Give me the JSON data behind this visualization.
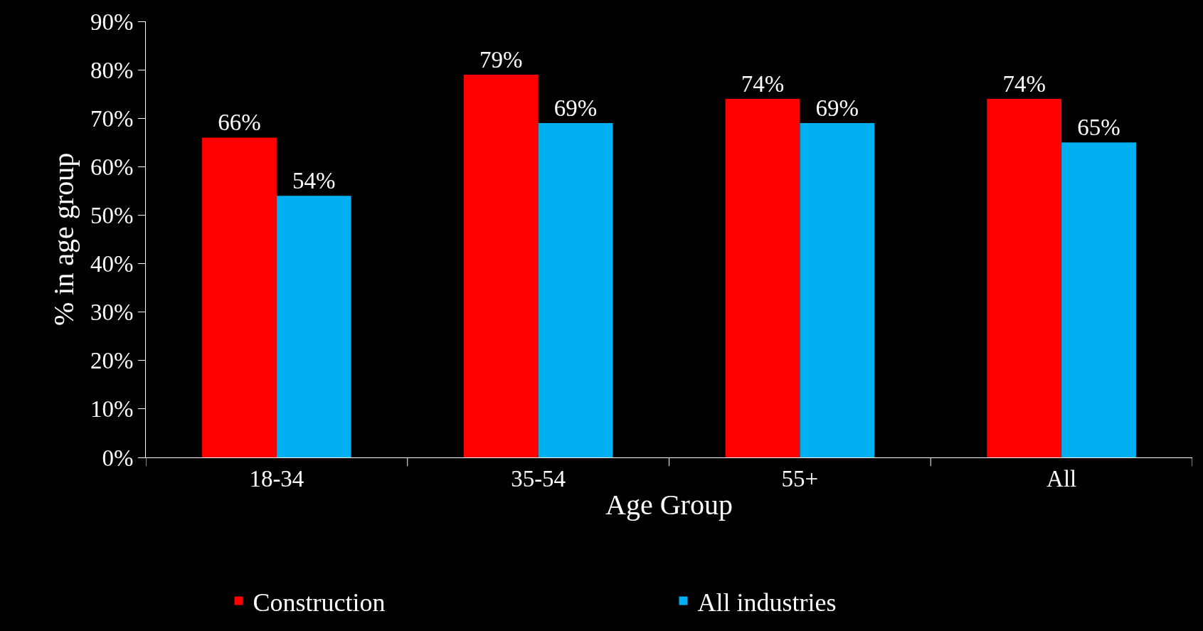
{
  "chart_data": {
    "type": "bar",
    "xlabel": "Age Group",
    "ylabel": "% in age group",
    "categories": [
      "18-34",
      "35-54",
      "55+",
      "All"
    ],
    "series": [
      {
        "name": "Construction",
        "color": "#ff0000",
        "values": [
          66,
          79,
          74,
          74
        ],
        "value_labels": [
          "66%",
          "79%",
          "74%",
          "74%"
        ]
      },
      {
        "name": "All industries",
        "color": "#00b0f0",
        "values": [
          54,
          69,
          69,
          65
        ],
        "value_labels": [
          "54%",
          "69%",
          "69%",
          "65%"
        ]
      }
    ],
    "ylim": [
      0,
      90
    ],
    "yticks": [
      {
        "value": 0,
        "label": "0%"
      },
      {
        "value": 10,
        "label": "10%"
      },
      {
        "value": 20,
        "label": "20%"
      },
      {
        "value": 30,
        "label": "30%"
      },
      {
        "value": 40,
        "label": "40%"
      },
      {
        "value": 50,
        "label": "50%"
      },
      {
        "value": 60,
        "label": "60%"
      },
      {
        "value": 70,
        "label": "70%"
      },
      {
        "value": 80,
        "label": "80%"
      },
      {
        "value": 90,
        "label": "90%"
      }
    ],
    "grid": false,
    "legend": "bottom"
  }
}
